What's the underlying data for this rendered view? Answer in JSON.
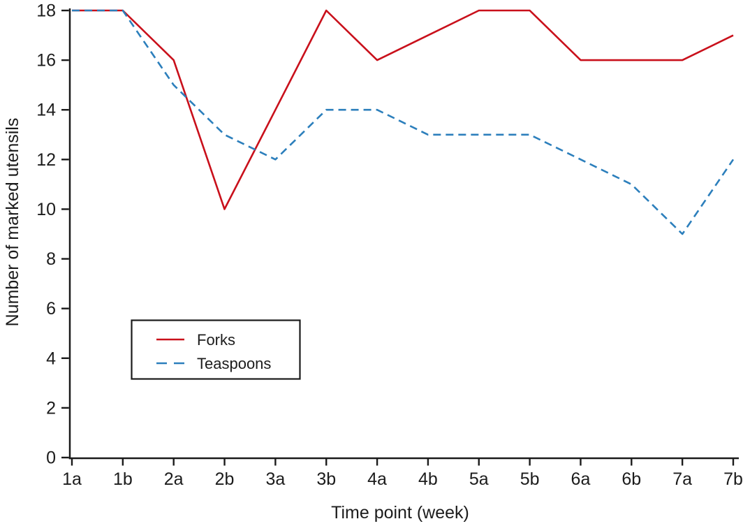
{
  "figure": {
    "background_color": "#ffffff",
    "axis_color": "#1a1a1a",
    "text_color": "#1c1c1c"
  },
  "chart_data": {
    "type": "line",
    "title": "",
    "xlabel": "Time point (week)",
    "ylabel": "Number of marked utensils",
    "categories": [
      "1a",
      "1b",
      "2a",
      "2b",
      "3a",
      "3b",
      "4a",
      "4b",
      "5a",
      "5b",
      "6a",
      "6b",
      "7a",
      "7b"
    ],
    "y_ticks": [
      0,
      2,
      4,
      6,
      8,
      10,
      12,
      14,
      16,
      18
    ],
    "ylim": [
      0,
      18
    ],
    "grid": false,
    "legend_position": "inside-lower-left",
    "series": [
      {
        "name": "Forks",
        "color": "#c9101b",
        "line_style": "solid",
        "values": [
          18,
          18,
          16,
          10,
          14,
          18,
          16,
          17,
          18,
          18,
          16,
          16,
          16,
          17
        ]
      },
      {
        "name": "Teaspoons",
        "color": "#2c7fbc",
        "line_style": "dashed",
        "values": [
          18,
          18,
          15,
          13,
          12,
          14,
          14,
          13,
          13,
          13,
          12,
          11,
          9,
          12
        ]
      }
    ]
  }
}
